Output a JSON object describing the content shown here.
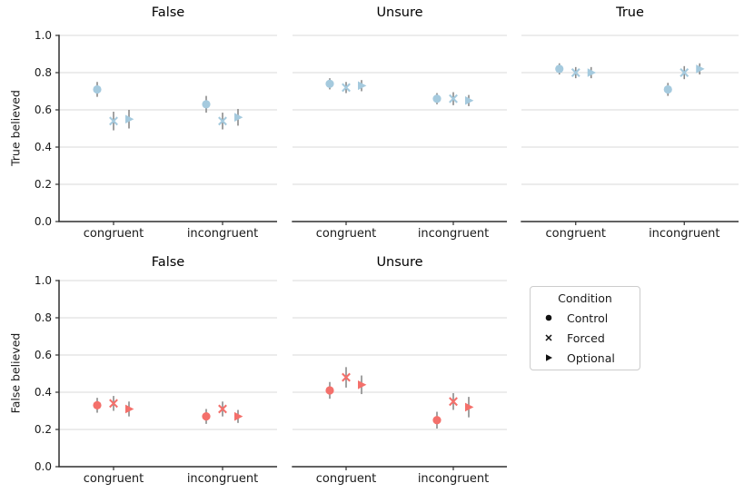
{
  "style": {
    "background": "#ffffff",
    "grid_color": "#d9d9d9",
    "spine_color": "#2f2f2f",
    "errorbar_color": "#8b8b8b",
    "text_color": "#1a1a1a",
    "blue_marker": "#a5cade",
    "red_marker": "#f4706b",
    "legend_marker_color": "#111111"
  },
  "legend": {
    "title": "Condition",
    "items": [
      {
        "label": "Control",
        "marker": "circle"
      },
      {
        "label": "Forced",
        "marker": "x"
      },
      {
        "label": "Optional",
        "marker": "triangle-right"
      }
    ]
  },
  "chart_data": [
    {
      "type": "scatter",
      "title": "False",
      "ylabel": "True believed",
      "categories": [
        "congruent",
        "incongruent"
      ],
      "ylim": [
        0.0,
        1.0
      ],
      "yticks": [
        0.0,
        0.2,
        0.4,
        0.6,
        0.8,
        1.0
      ],
      "ytick_labels": [
        "0.0",
        "0.2",
        "0.4",
        "0.6",
        "0.8",
        "1.0"
      ],
      "grid": true,
      "marker_color": "#a5cade",
      "series": [
        {
          "name": "Control",
          "marker": "circle",
          "values": [
            0.71,
            0.63
          ],
          "errors": [
            0.04,
            0.045
          ]
        },
        {
          "name": "Forced",
          "marker": "x",
          "values": [
            0.54,
            0.54
          ],
          "errors": [
            0.05,
            0.045
          ]
        },
        {
          "name": "Optional",
          "marker": "triangle-right",
          "values": [
            0.55,
            0.56
          ],
          "errors": [
            0.05,
            0.045
          ]
        }
      ]
    },
    {
      "type": "scatter",
      "title": "Unsure",
      "categories": [
        "congruent",
        "incongruent"
      ],
      "ylim": [
        0.0,
        1.0
      ],
      "yticks": [
        0.0,
        0.2,
        0.4,
        0.6,
        0.8,
        1.0
      ],
      "ytick_labels": [
        "0.0",
        "0.2",
        "0.4",
        "0.6",
        "0.8",
        "1.0"
      ],
      "grid": true,
      "marker_color": "#a5cade",
      "series": [
        {
          "name": "Control",
          "marker": "circle",
          "values": [
            0.74,
            0.66
          ],
          "errors": [
            0.03,
            0.03
          ]
        },
        {
          "name": "Forced",
          "marker": "x",
          "values": [
            0.72,
            0.66
          ],
          "errors": [
            0.03,
            0.035
          ]
        },
        {
          "name": "Optional",
          "marker": "triangle-right",
          "values": [
            0.73,
            0.65
          ],
          "errors": [
            0.03,
            0.03
          ]
        }
      ]
    },
    {
      "type": "scatter",
      "title": "True",
      "categories": [
        "congruent",
        "incongruent"
      ],
      "ylim": [
        0.0,
        1.0
      ],
      "yticks": [
        0.0,
        0.2,
        0.4,
        0.6,
        0.8,
        1.0
      ],
      "ytick_labels": [
        "0.0",
        "0.2",
        "0.4",
        "0.6",
        "0.8",
        "1.0"
      ],
      "grid": true,
      "marker_color": "#a5cade",
      "series": [
        {
          "name": "Control",
          "marker": "circle",
          "values": [
            0.82,
            0.71
          ],
          "errors": [
            0.03,
            0.035
          ]
        },
        {
          "name": "Forced",
          "marker": "x",
          "values": [
            0.8,
            0.8
          ],
          "errors": [
            0.03,
            0.035
          ]
        },
        {
          "name": "Optional",
          "marker": "triangle-right",
          "values": [
            0.8,
            0.82
          ],
          "errors": [
            0.03,
            0.03
          ]
        }
      ]
    },
    {
      "type": "scatter",
      "title": "False",
      "ylabel": "False believed",
      "categories": [
        "congruent",
        "incongruent"
      ],
      "ylim": [
        0.0,
        1.0
      ],
      "yticks": [
        0.0,
        0.2,
        0.4,
        0.6,
        0.8,
        1.0
      ],
      "ytick_labels": [
        "0.0",
        "0.2",
        "0.4",
        "0.6",
        "0.8",
        "1.0"
      ],
      "grid": true,
      "marker_color": "#f4706b",
      "series": [
        {
          "name": "Control",
          "marker": "circle",
          "values": [
            0.33,
            0.27
          ],
          "errors": [
            0.04,
            0.04
          ]
        },
        {
          "name": "Forced",
          "marker": "x",
          "values": [
            0.34,
            0.31
          ],
          "errors": [
            0.04,
            0.04
          ]
        },
        {
          "name": "Optional",
          "marker": "triangle-right",
          "values": [
            0.31,
            0.27
          ],
          "errors": [
            0.04,
            0.035
          ]
        }
      ]
    },
    {
      "type": "scatter",
      "title": "Unsure",
      "categories": [
        "congruent",
        "incongruent"
      ],
      "ylim": [
        0.0,
        1.0
      ],
      "yticks": [
        0.0,
        0.2,
        0.4,
        0.6,
        0.8,
        1.0
      ],
      "ytick_labels": [
        "0.0",
        "0.2",
        "0.4",
        "0.6",
        "0.8",
        "1.0"
      ],
      "grid": true,
      "marker_color": "#f4706b",
      "series": [
        {
          "name": "Control",
          "marker": "circle",
          "values": [
            0.41,
            0.25
          ],
          "errors": [
            0.045,
            0.045
          ]
        },
        {
          "name": "Forced",
          "marker": "x",
          "values": [
            0.48,
            0.35
          ],
          "errors": [
            0.055,
            0.045
          ]
        },
        {
          "name": "Optional",
          "marker": "triangle-right",
          "values": [
            0.44,
            0.32
          ],
          "errors": [
            0.05,
            0.055
          ]
        }
      ]
    }
  ]
}
